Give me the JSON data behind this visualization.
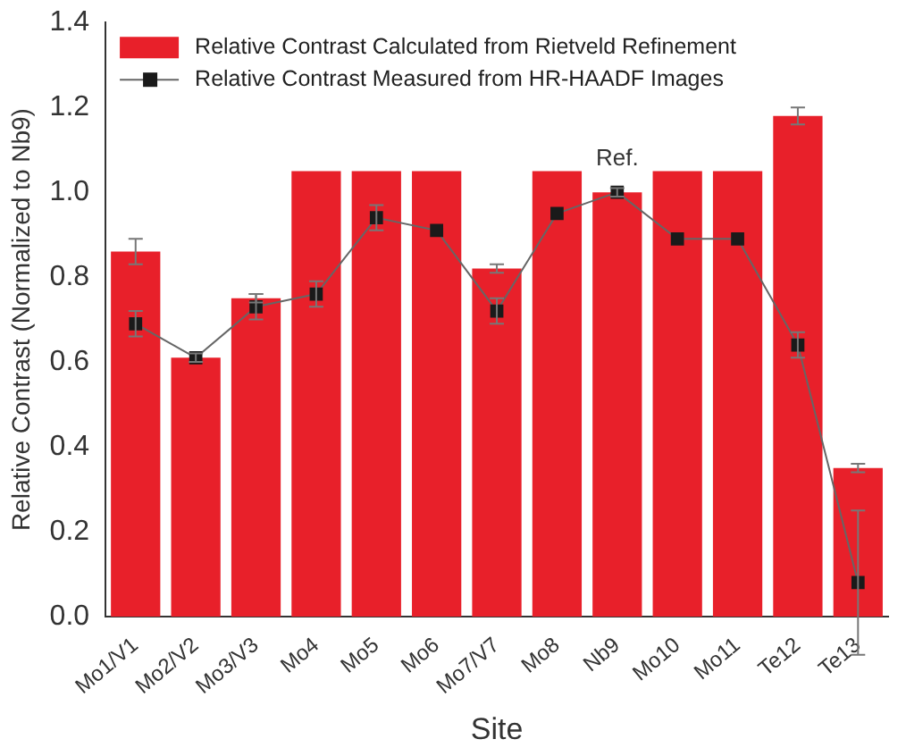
{
  "chart_data": {
    "type": "bar",
    "xlabel": "Site",
    "ylabel": "Relative Contrast (Normalized to Nb9)",
    "categories": [
      "Mo1/V1",
      "Mo2/V2",
      "Mo3/V3",
      "Mo4",
      "Mo5",
      "Mo6",
      "Mo7/V7",
      "Mo8",
      "Nb9",
      "Mo10",
      "Mo11",
      "Te12",
      "Te13"
    ],
    "series": [
      {
        "name": "Relative Contrast Calculated from Rietveld Refinement",
        "color": "#e8202a",
        "values": [
          0.86,
          0.61,
          0.75,
          1.05,
          1.05,
          1.05,
          0.82,
          1.05,
          1.0,
          1.05,
          1.05,
          1.18,
          0.35
        ],
        "errors": [
          0.03,
          null,
          0.01,
          null,
          null,
          null,
          0.01,
          null,
          null,
          null,
          null,
          0.02,
          0.01
        ]
      },
      {
        "name": "Relative Contrast Measured from HR-HAADF Images",
        "type": "line",
        "color": "#1a1a1a",
        "marker": "square",
        "values": [
          0.69,
          0.61,
          0.73,
          0.76,
          0.94,
          0.91,
          0.72,
          0.95,
          1.0,
          0.89,
          0.89,
          0.64,
          0.08
        ],
        "errors": [
          0.03,
          0.01,
          0.03,
          0.03,
          0.03,
          null,
          0.03,
          null,
          0.01,
          null,
          null,
          0.03,
          0.17
        ]
      }
    ],
    "ylim": [
      0,
      1.4
    ],
    "yticks": [
      {
        "value": 0,
        "label": "0.0"
      },
      {
        "value": 0.2,
        "label": "0.2"
      },
      {
        "value": 0.4,
        "label": "0.4"
      },
      {
        "value": 0.6,
        "label": "0.6"
      },
      {
        "value": 0.8,
        "label": "0.8"
      },
      {
        "value": 1.0,
        "label": "1.0"
      },
      {
        "value": 1.2,
        "label": "1.2"
      },
      {
        "value": 1.4,
        "label": "1.4"
      }
    ],
    "annotations": [
      {
        "text": "Ref.",
        "x": "Nb9",
        "y": 1.0
      }
    ],
    "grid": false,
    "legend": "top left"
  }
}
